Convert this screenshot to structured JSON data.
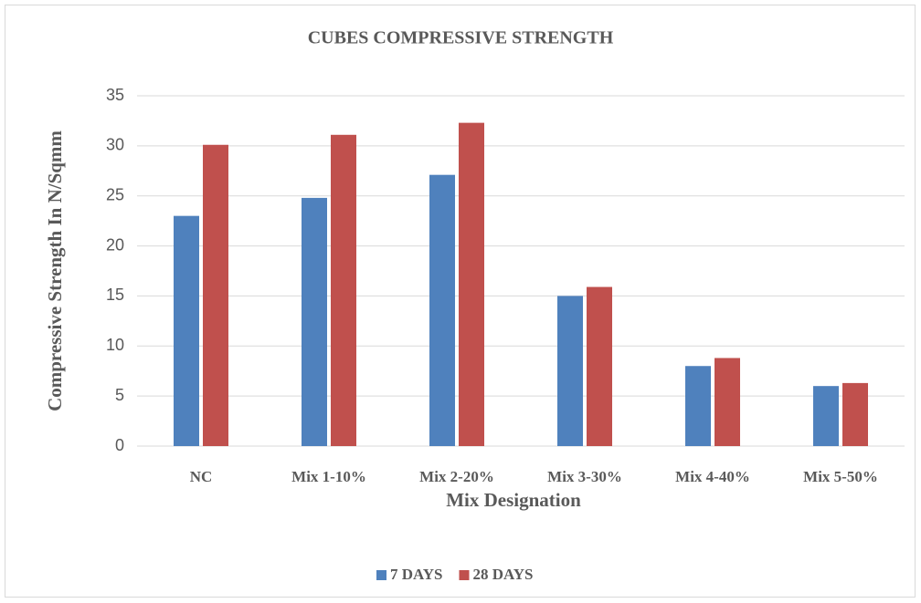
{
  "chart_data": {
    "type": "bar",
    "title": "CUBES COMPRESSIVE STRENGTH",
    "x_label": "Mix Designation",
    "y_label": "Compressive Strength In N/Sqmm",
    "categories": [
      "NC",
      "Mix 1-10%",
      "Mix 2-20%",
      "Mix 3-30%",
      "Mix 4-40%",
      "Mix 5-50%"
    ],
    "series": [
      {
        "name": "7 DAYS",
        "color": "#4f81bd",
        "values": [
          23,
          24.8,
          27.1,
          15,
          8,
          6
        ]
      },
      {
        "name": "28 DAYS",
        "color": "#c0504d",
        "values": [
          30.1,
          31.1,
          32.3,
          15.9,
          8.8,
          6.3
        ]
      }
    ],
    "ylim": [
      0,
      35
    ],
    "yticks": [
      0,
      5,
      10,
      15,
      20,
      25,
      30,
      35
    ],
    "grid": true,
    "legend": "bottom"
  }
}
